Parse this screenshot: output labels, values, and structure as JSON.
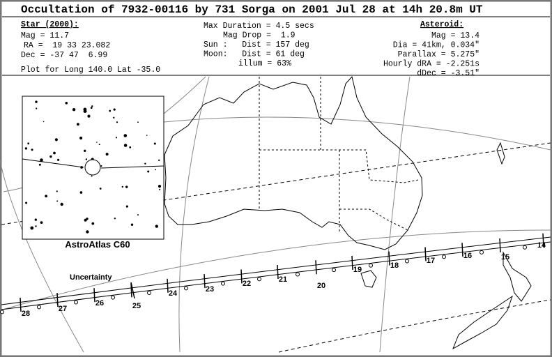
{
  "header": {
    "title": "Occultation of 7932-00116 by 731 Sorga on  2001 Jul 28 at 14h 20.8m UT"
  },
  "star": {
    "heading": "Star (2000):",
    "lines": [
      "Mag = 11.7",
      "RA =  19 33 23.082",
      "Dec = -37 47  6.99"
    ]
  },
  "event": {
    "lines": [
      "Max Duration = 4.5 secs",
      "Mag Drop =  1.9",
      "Sun :   Dist = 157 deg",
      "Moon:   Dist = 61 deg",
      "illum = 63%"
    ]
  },
  "asteroid": {
    "heading": "Asteroid:",
    "lines": [
      "Mag = 13.4",
      "Dia = 41km, 0.034\"",
      "Parallax = 5.275\"",
      "Hourly dRA = -2.251s",
      "dDec = -3.51\""
    ]
  },
  "plot_location": "Plot for Long 140.0  Lat -35.0",
  "inset": {
    "caption": "AstroAtlas C60"
  },
  "uncertainty_label": "Uncertainty",
  "track": {
    "hour_labels": [
      "14",
      "15",
      "16",
      "17",
      "18",
      "19",
      "20",
      "21",
      "22",
      "23",
      "24",
      "25",
      "26",
      "27",
      "28"
    ]
  }
}
